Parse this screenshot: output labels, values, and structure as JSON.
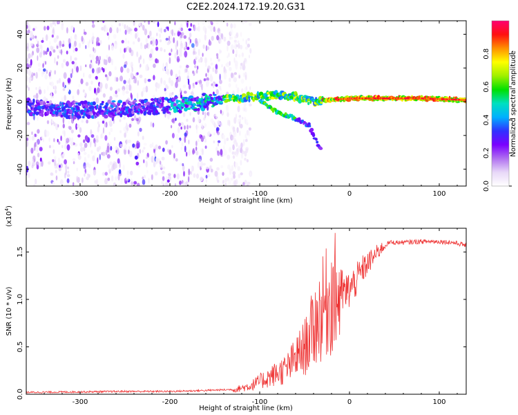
{
  "title": "C2E2.2024.172.19.20.G31",
  "chart_data": [
    {
      "type": "heatmap",
      "name": "spectrogram",
      "xlabel": "Height of straight line (km)",
      "ylabel": "Frequency (Hz)",
      "xlim": [
        -360,
        130
      ],
      "ylim": [
        -50,
        48
      ],
      "xticks": [
        -300,
        -200,
        -100,
        0,
        100
      ],
      "yticks": [
        -40,
        -20,
        0,
        20,
        40
      ],
      "colorbar": {
        "label": "Normalized spectral amplitude",
        "range": [
          0,
          1
        ],
        "ticks": [
          "0.0",
          "0.2",
          "0.4",
          "0.6",
          "0.8"
        ],
        "colormap": [
          "#ffffff",
          "#e8d8f8",
          "#b070f0",
          "#7a00ff",
          "#3030ff",
          "#00b0ff",
          "#00e0c0",
          "#00e000",
          "#a0f000",
          "#ffff00",
          "#ff9000",
          "#ff1010",
          "#ff0070"
        ]
      },
      "features": {
        "noise_region_x": [
          -360,
          -140
        ],
        "main_trace": [
          [
            -360,
            -3
          ],
          [
            -300,
            -5
          ],
          [
            -250,
            -4
          ],
          [
            -200,
            -2
          ],
          [
            -160,
            0
          ],
          [
            -130,
            2
          ],
          [
            -100,
            3
          ],
          [
            -80,
            4
          ],
          [
            -60,
            3
          ],
          [
            -40,
            0
          ],
          [
            -20,
            1
          ],
          [
            0,
            2
          ],
          [
            40,
            2
          ],
          [
            80,
            2
          ],
          [
            130,
            1
          ]
        ],
        "branch_trace": [
          [
            -100,
            0
          ],
          [
            -80,
            -6
          ],
          [
            -60,
            -10
          ],
          [
            -45,
            -14
          ],
          [
            -38,
            -22
          ],
          [
            -32,
            -28
          ]
        ]
      }
    },
    {
      "type": "line",
      "name": "snr",
      "xlabel": "Height of straight line (km)",
      "ylabel": "SNR (10 * v/v)",
      "scale_label": "(x10",
      "scale_exponent": "4",
      "xlim": [
        -360,
        130
      ],
      "ylim": [
        0,
        1.75
      ],
      "xticks": [
        -300,
        -200,
        -100,
        0,
        100
      ],
      "yticks": [
        "0.0",
        "0.5",
        "1.0",
        "1.5"
      ],
      "color": "#ee3333",
      "envelope": [
        [
          -360,
          0.02
        ],
        [
          -300,
          0.025
        ],
        [
          -250,
          0.03
        ],
        [
          -200,
          0.03
        ],
        [
          -160,
          0.04
        ],
        [
          -130,
          0.05
        ],
        [
          -110,
          0.1
        ],
        [
          -90,
          0.2
        ],
        [
          -70,
          0.3
        ],
        [
          -50,
          0.55
        ],
        [
          -35,
          0.9
        ],
        [
          -25,
          1.1
        ],
        [
          -15,
          1.2
        ],
        [
          -5,
          1.1
        ],
        [
          5,
          1.2
        ],
        [
          15,
          1.35
        ],
        [
          25,
          1.45
        ],
        [
          35,
          1.55
        ],
        [
          45,
          1.6
        ],
        [
          60,
          1.6
        ],
        [
          80,
          1.61
        ],
        [
          100,
          1.61
        ],
        [
          115,
          1.6
        ],
        [
          125,
          1.58
        ],
        [
          130,
          1.57
        ]
      ]
    }
  ]
}
